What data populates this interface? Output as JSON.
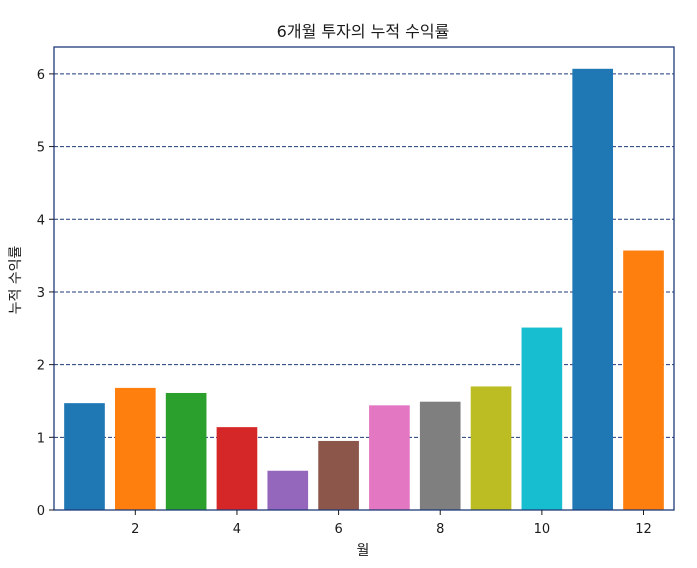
{
  "chart_data": {
    "type": "bar",
    "title": "6개월 투자의 누적 수익률",
    "xlabel": "월",
    "ylabel": "누적 수익률",
    "categories": [
      1,
      2,
      3,
      4,
      5,
      6,
      7,
      8,
      9,
      10,
      11,
      12
    ],
    "values": [
      1.47,
      1.68,
      1.61,
      1.14,
      0.54,
      0.95,
      1.44,
      1.49,
      1.7,
      2.51,
      6.07,
      3.57
    ],
    "colors": [
      "#1f77b4",
      "#ff7f0e",
      "#2ca02c",
      "#d62728",
      "#9467bd",
      "#8c564b",
      "#e377c2",
      "#7f7f7f",
      "#bcbd22",
      "#17becf",
      "#1f77b4",
      "#ff7f0e"
    ],
    "xticks": [
      2,
      4,
      6,
      8,
      10,
      12
    ],
    "xtick_labels": [
      "2",
      "4",
      "6",
      "8",
      "10",
      "12"
    ],
    "yticks": [
      0,
      1,
      2,
      3,
      4,
      5,
      6
    ],
    "ytick_labels": [
      "0",
      "1",
      "2",
      "3",
      "4",
      "5",
      "6"
    ],
    "xlim": [
      0.4,
      12.6
    ],
    "ylim": [
      0,
      6.37
    ],
    "grid": "y-dashed",
    "grid_color": "#1f3a7a",
    "axes_color": "#1f3a7a"
  }
}
